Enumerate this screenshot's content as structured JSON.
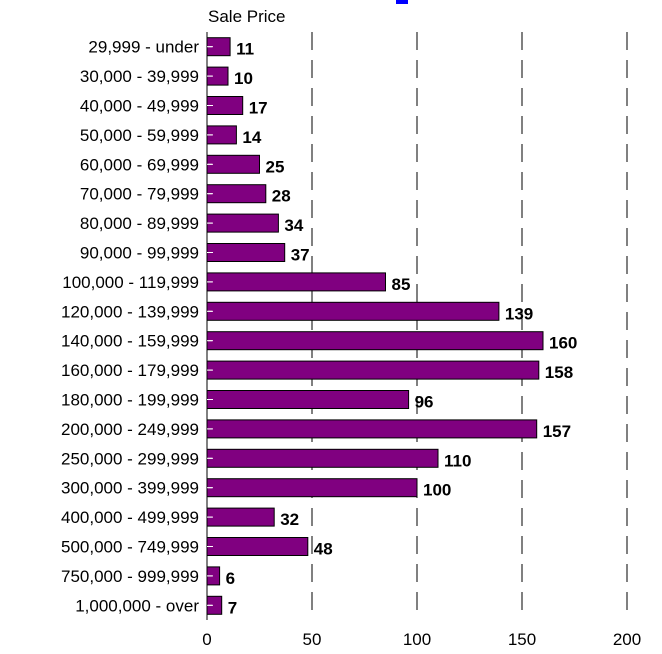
{
  "chart_data": {
    "type": "bar",
    "orientation": "horizontal",
    "ylabel": "Sale Price",
    "xlim": [
      0,
      200
    ],
    "x_ticks": [
      0,
      50,
      100,
      150,
      200
    ],
    "grid": "vertical dashed",
    "colors": {
      "bar_fill": "#800080",
      "bar_stroke": "#000000",
      "title_partial": "#0000ff"
    },
    "categories": [
      "29,999 - under",
      "30,000 - 39,999",
      "40,000 - 49,999",
      "50,000 - 59,999",
      "60,000 - 69,999",
      "70,000 - 79,999",
      "80,000 - 89,999",
      "90,000 - 99,999",
      "100,000 - 119,999",
      "120,000 - 139,999",
      "140,000 - 159,999",
      "160,000 - 179,999",
      "180,000 - 199,999",
      "200,000 - 249,999",
      "250,000 - 299,999",
      "300,000 - 399,999",
      "400,000 - 499,999",
      "500,000 - 749,999",
      "750,000 - 999,999",
      "1,000,000 - over"
    ],
    "values": [
      11,
      10,
      17,
      14,
      25,
      28,
      34,
      37,
      85,
      139,
      160,
      158,
      96,
      157,
      110,
      100,
      32,
      48,
      6,
      7
    ]
  }
}
